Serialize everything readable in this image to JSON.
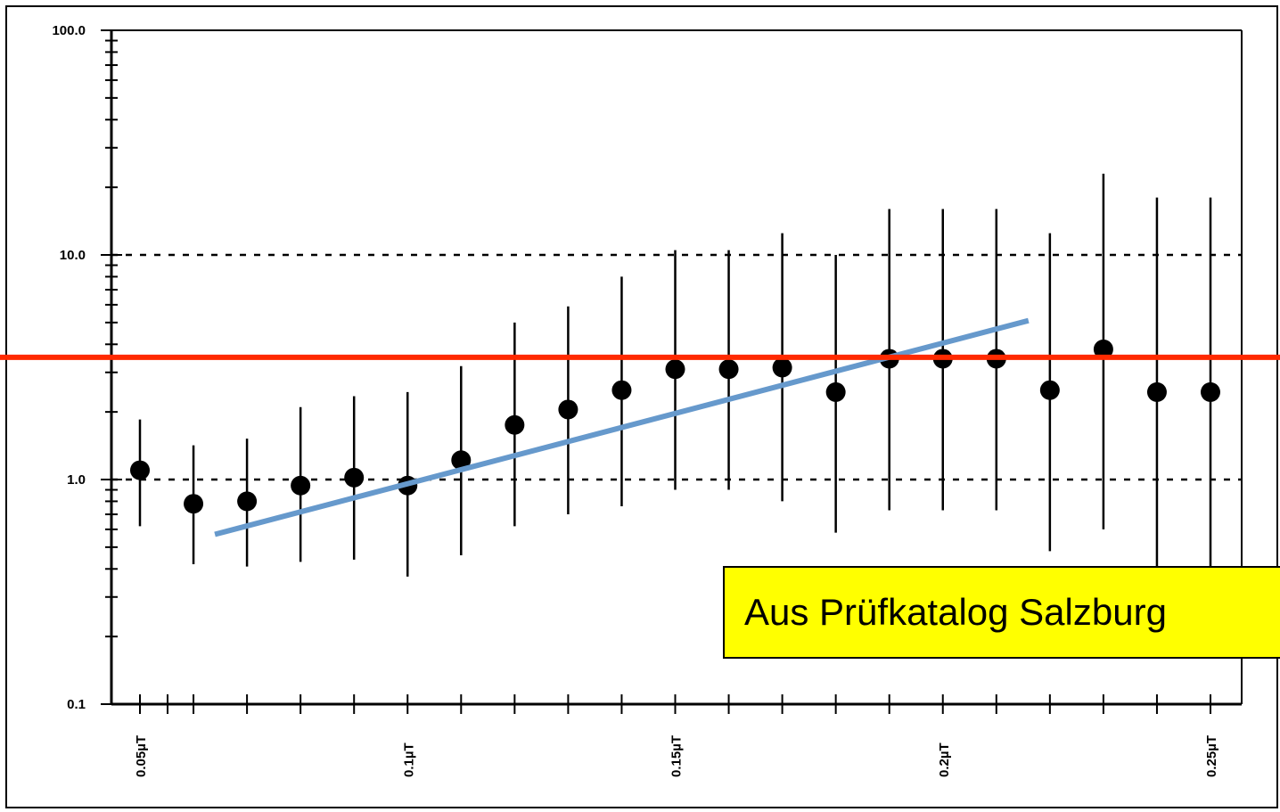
{
  "chart_data": {
    "type": "scatter",
    "title": "",
    "xlabel": "",
    "ylabel": "",
    "y_scale": "log",
    "ylim": [
      0.1,
      100
    ],
    "xlim": [
      0.05,
      0.255
    ],
    "y_tick_labels": [
      "100.0",
      "10.0",
      "1.0",
      "0.1"
    ],
    "y_tick_values": [
      100,
      10,
      1,
      0.1
    ],
    "x_tick_labels": [
      "0.05µT",
      "0.1µT",
      "0.15µT",
      "0.2µT",
      "0.25µT"
    ],
    "x_tick_values": [
      0.05,
      0.1,
      0.15,
      0.2,
      0.25
    ],
    "grid_dotted_at_y": [
      10,
      1
    ],
    "series": [
      {
        "points": [
          {
            "x": 0.05,
            "y": 1.1,
            "low": 0.62,
            "high": 1.85
          },
          {
            "x": 0.06,
            "y": 0.78,
            "low": 0.42,
            "high": 1.42
          },
          {
            "x": 0.07,
            "y": 0.8,
            "low": 0.41,
            "high": 1.52
          },
          {
            "x": 0.08,
            "y": 0.94,
            "low": 0.43,
            "high": 2.1
          },
          {
            "x": 0.09,
            "y": 1.02,
            "low": 0.44,
            "high": 2.35
          },
          {
            "x": 0.1,
            "y": 0.94,
            "low": 0.37,
            "high": 2.45
          },
          {
            "x": 0.11,
            "y": 1.22,
            "low": 0.46,
            "high": 3.2
          },
          {
            "x": 0.12,
            "y": 1.75,
            "low": 0.62,
            "high": 5.0
          },
          {
            "x": 0.13,
            "y": 2.05,
            "low": 0.7,
            "high": 5.9
          },
          {
            "x": 0.14,
            "y": 2.5,
            "low": 0.76,
            "high": 8.0
          },
          {
            "x": 0.15,
            "y": 3.1,
            "low": 0.9,
            "high": 10.5
          },
          {
            "x": 0.16,
            "y": 3.1,
            "low": 0.9,
            "high": 10.5
          },
          {
            "x": 0.17,
            "y": 3.15,
            "low": 0.8,
            "high": 12.5
          },
          {
            "x": 0.18,
            "y": 2.45,
            "low": 0.58,
            "high": 10.0
          },
          {
            "x": 0.19,
            "y": 3.45,
            "low": 0.73,
            "high": 16.0
          },
          {
            "x": 0.2,
            "y": 3.45,
            "low": 0.73,
            "high": 16.0
          },
          {
            "x": 0.21,
            "y": 3.45,
            "low": 0.73,
            "high": 16.0
          },
          {
            "x": 0.22,
            "y": 2.5,
            "low": 0.48,
            "high": 12.5
          },
          {
            "x": 0.23,
            "y": 3.8,
            "low": 0.6,
            "high": 23.0
          },
          {
            "x": 0.24,
            "y": 2.45,
            "low": 0.38,
            "high": 18.0
          },
          {
            "x": 0.25,
            "y": 2.45,
            "low": 0.35,
            "high": 18.0
          }
        ]
      }
    ],
    "reference_line": {
      "y": 3.5,
      "color": "#ff2a00",
      "extends_full_width": true
    },
    "trend_line": {
      "x": [
        0.064,
        0.216
      ],
      "y": [
        0.57,
        5.1
      ],
      "color": "#6699cc"
    },
    "colors": {
      "points": "#000000",
      "grid": "#000000",
      "reference": "#ff2a00",
      "trend": "#6699cc",
      "callout_background": "#ffff00"
    }
  },
  "annotation": {
    "text": "Aus Prüfkatalog Salzburg"
  }
}
